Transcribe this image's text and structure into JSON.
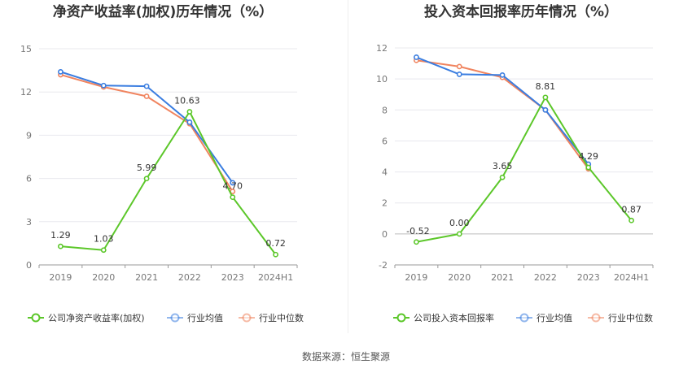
{
  "source_text": "数据来源：恒生聚源",
  "chart_data": [
    {
      "type": "line",
      "title": "净资产收益率(加权)历年情况（%）",
      "categories": [
        "2019",
        "2020",
        "2021",
        "2022",
        "2023",
        "2024H1"
      ],
      "ylim": [
        0,
        15
      ],
      "yticks": [
        0,
        3,
        6,
        9,
        12,
        15
      ],
      "grid": true,
      "legend_position": "bottom",
      "series": [
        {
          "name": "公司净资产收益率(加权)",
          "color": "#5cc72a",
          "labeled": true,
          "values": [
            1.29,
            1.03,
            5.99,
            10.63,
            4.7,
            0.72
          ],
          "labels": [
            "1.29",
            "1.03",
            "5.99",
            "10.63",
            "4.70",
            "0.72"
          ]
        },
        {
          "name": "行业均值",
          "color": "#3a7de0",
          "labeled": false,
          "values": [
            13.4,
            12.45,
            12.4,
            9.9,
            5.7,
            null
          ]
        },
        {
          "name": "行业中位数",
          "color": "#f0845f",
          "labeled": false,
          "values": [
            13.2,
            12.35,
            11.7,
            9.8,
            5.1,
            null
          ]
        }
      ]
    },
    {
      "type": "line",
      "title": "投入资本回报率历年情况（%）",
      "categories": [
        "2019",
        "2020",
        "2021",
        "2022",
        "2023",
        "2024H1"
      ],
      "ylim": [
        -2,
        12
      ],
      "yticks": [
        -2,
        0,
        2,
        4,
        6,
        8,
        10,
        12
      ],
      "grid": true,
      "legend_position": "bottom",
      "series": [
        {
          "name": "公司投入资本回报率",
          "color": "#5cc72a",
          "labeled": true,
          "values": [
            -0.52,
            0.0,
            3.65,
            8.81,
            4.29,
            0.87
          ],
          "labels": [
            "-0.52",
            "0.00",
            "3.65",
            "8.81",
            "4.29",
            "0.87"
          ]
        },
        {
          "name": "行业均值",
          "color": "#3a7de0",
          "labeled": false,
          "values": [
            11.4,
            10.3,
            10.25,
            8.0,
            4.5,
            null
          ]
        },
        {
          "name": "行业中位数",
          "color": "#f0845f",
          "labeled": false,
          "values": [
            11.2,
            10.8,
            10.1,
            8.0,
            4.2,
            null
          ]
        }
      ]
    }
  ]
}
